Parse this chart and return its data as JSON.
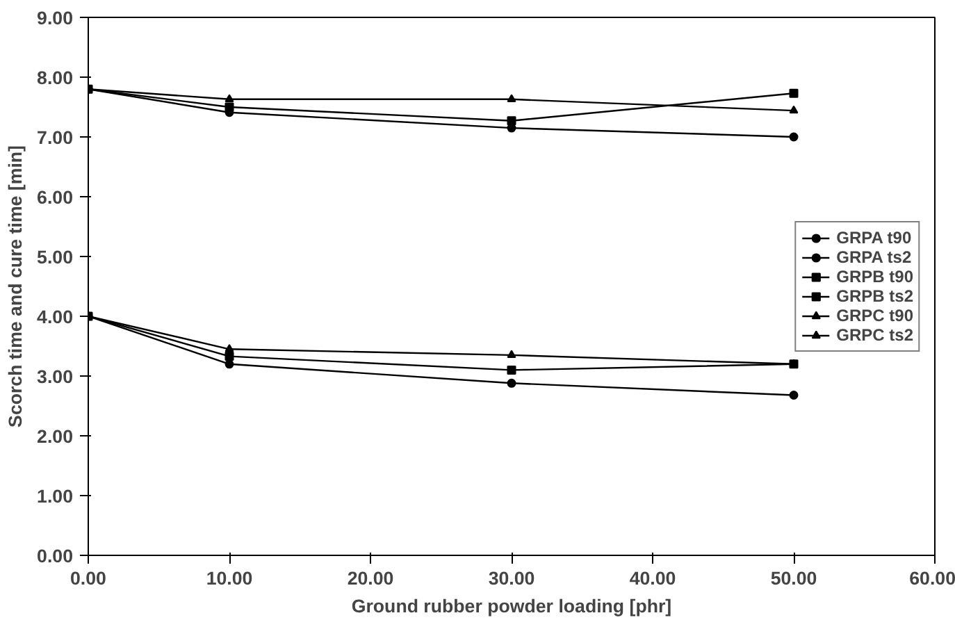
{
  "chart_data": {
    "type": "line",
    "xlabel": "Ground rubber powder loading [phr]",
    "ylabel": "Scorch time and cure time [min]",
    "x": [
      0,
      10,
      30,
      50
    ],
    "series": [
      {
        "name": "GRPA t90",
        "color": "#000000",
        "marker": "circle",
        "values": [
          7.8,
          7.41,
          7.15,
          7.0
        ]
      },
      {
        "name": "GRPA ts2",
        "color": "#000000",
        "marker": "circle",
        "values": [
          4.0,
          3.2,
          2.88,
          2.68
        ]
      },
      {
        "name": "GRPB t90",
        "color": "#000000",
        "marker": "square",
        "values": [
          7.8,
          7.5,
          7.27,
          7.73
        ]
      },
      {
        "name": "GRPB ts2",
        "color": "#000000",
        "marker": "square",
        "values": [
          4.0,
          3.33,
          3.1,
          3.2
        ]
      },
      {
        "name": "GRPC t90",
        "color": "#000000",
        "marker": "triangle",
        "values": [
          7.8,
          7.63,
          7.63,
          7.44
        ]
      },
      {
        "name": "GRPC ts2",
        "color": "#000000",
        "marker": "triangle",
        "values": [
          4.0,
          3.45,
          3.35,
          3.2
        ]
      }
    ],
    "xlim": [
      0,
      60
    ],
    "xticks": [
      {
        "value": 0,
        "label": "0.00"
      },
      {
        "value": 10,
        "label": "10.00"
      },
      {
        "value": 20,
        "label": "20.00"
      },
      {
        "value": 30,
        "label": "30.00"
      },
      {
        "value": 40,
        "label": "40.00"
      },
      {
        "value": 50,
        "label": "50.00"
      },
      {
        "value": 60,
        "label": "60.00"
      }
    ],
    "ylim": [
      0,
      9
    ],
    "yticks": [
      {
        "value": 0,
        "label": "0.00"
      },
      {
        "value": 1,
        "label": "1.00"
      },
      {
        "value": 2,
        "label": "2.00"
      },
      {
        "value": 3,
        "label": "3.00"
      },
      {
        "value": 4,
        "label": "4.00"
      },
      {
        "value": 5,
        "label": "5.00"
      },
      {
        "value": 6,
        "label": "6.00"
      },
      {
        "value": 7,
        "label": "7.00"
      },
      {
        "value": 8,
        "label": "8.00"
      },
      {
        "value": 9,
        "label": "9.00"
      }
    ],
    "legend": "right",
    "line_style": "solid"
  }
}
